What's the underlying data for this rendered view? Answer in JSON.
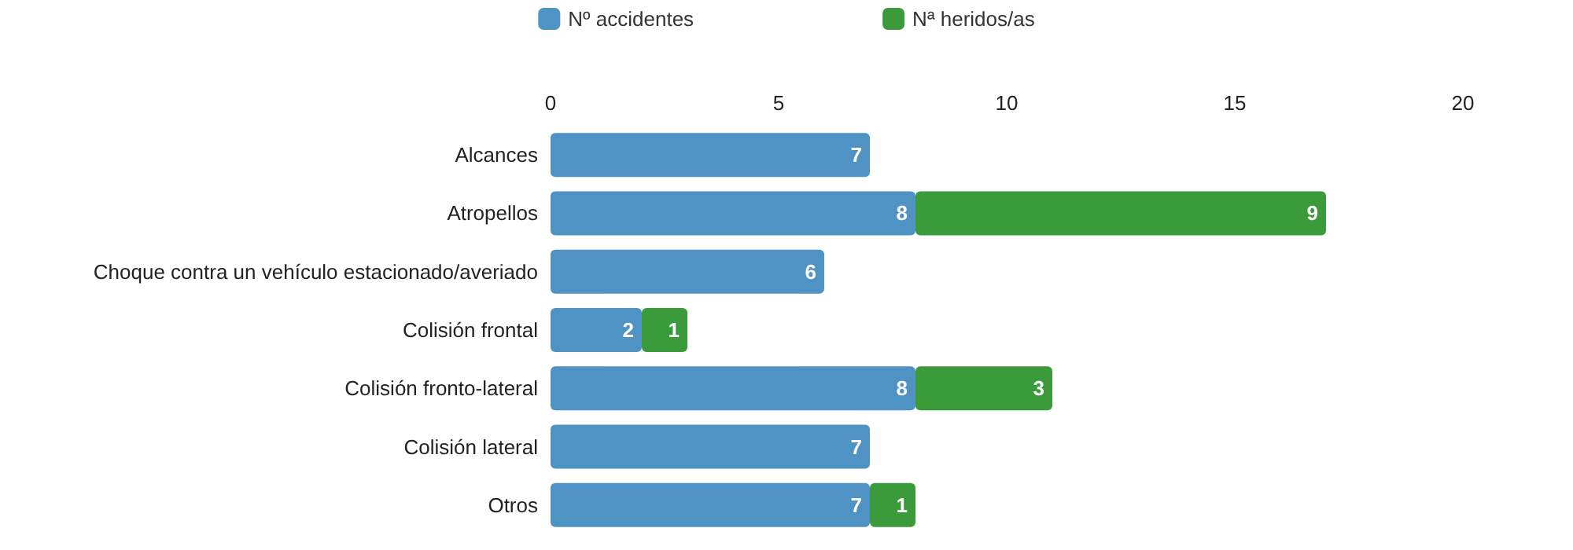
{
  "chart_data": {
    "type": "bar",
    "orientation": "horizontal",
    "stacked": true,
    "data_labels": true,
    "legend": "top",
    "grid": false,
    "categories": [
      "Alcances",
      "Atropellos",
      "Choque contra un vehículo estacionado/averiado",
      "Colisión frontal",
      "Colisión fronto-lateral",
      "Colisión lateral",
      "Otros"
    ],
    "xlim": [
      0,
      20
    ],
    "xticks": [
      0,
      5,
      10,
      15,
      20
    ],
    "series": [
      {
        "name": "Nº accidentes",
        "color": "#4f93c4",
        "values": [
          7,
          8,
          6,
          2,
          8,
          7,
          7
        ]
      },
      {
        "name": "Nª heridos/as",
        "color": "#3b9b3b",
        "values": [
          null,
          9,
          null,
          1,
          3,
          null,
          1
        ]
      }
    ]
  }
}
